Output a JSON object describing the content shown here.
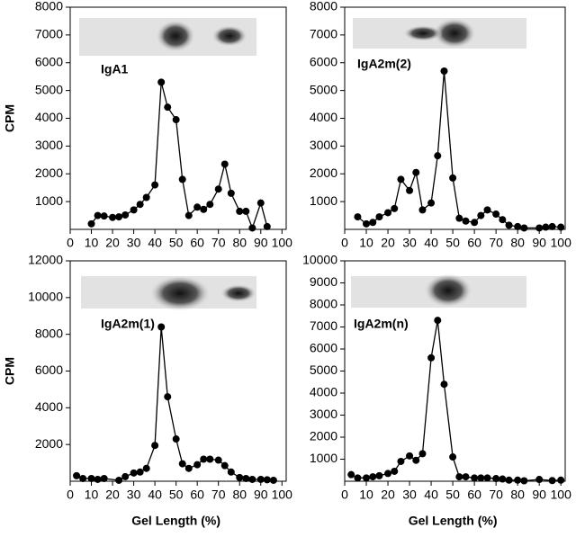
{
  "chart_data": [
    {
      "type": "line",
      "label": "IgA1",
      "y_label": "CPM",
      "color": "#000000",
      "x": [
        10,
        13,
        16,
        20,
        23,
        26,
        30,
        33,
        36,
        40,
        43,
        46,
        50,
        53,
        56,
        60,
        63,
        66,
        70,
        73,
        76,
        80,
        83,
        86,
        90,
        93
      ],
      "values": [
        200,
        500,
        480,
        430,
        450,
        520,
        700,
        900,
        1150,
        1600,
        5300,
        4400,
        3950,
        1800,
        500,
        800,
        720,
        900,
        1450,
        2350,
        1300,
        650,
        650,
        50,
        950,
        100
      ],
      "xlim": [
        0,
        102
      ],
      "xticks": [
        0,
        10,
        20,
        30,
        40,
        50,
        60,
        70,
        80,
        90,
        100
      ],
      "ylim": [
        0,
        8000
      ],
      "yticks": [
        1000,
        2000,
        3000,
        4000,
        5000,
        6000,
        7000,
        8000
      ]
    },
    {
      "type": "line",
      "label": "IgA2m(2)",
      "color": "#000000",
      "x": [
        6,
        10,
        13,
        16,
        20,
        23,
        26,
        30,
        33,
        36,
        40,
        43,
        46,
        50,
        53,
        56,
        60,
        63,
        66,
        70,
        73,
        76,
        80,
        83,
        90,
        93,
        96,
        100
      ],
      "values": [
        450,
        200,
        250,
        450,
        600,
        750,
        1800,
        1400,
        2050,
        700,
        950,
        2650,
        5700,
        1850,
        400,
        300,
        250,
        500,
        700,
        550,
        350,
        150,
        100,
        50,
        50,
        80,
        100,
        80
      ],
      "xlim": [
        0,
        102
      ],
      "xticks": [
        0,
        10,
        20,
        30,
        40,
        50,
        60,
        70,
        80,
        90,
        100
      ],
      "ylim": [
        0,
        8000
      ],
      "yticks": [
        1000,
        2000,
        3000,
        4000,
        5000,
        6000,
        7000,
        8000
      ]
    },
    {
      "type": "line",
      "label": "IgA2m(1)",
      "y_label": "CPM",
      "x_label": "Gel Length (%)",
      "color": "#000000",
      "x": [
        3,
        6,
        10,
        13,
        16,
        23,
        26,
        30,
        33,
        36,
        40,
        43,
        46,
        50,
        53,
        56,
        60,
        63,
        66,
        70,
        73,
        76,
        80,
        83,
        86,
        90,
        93,
        96
      ],
      "values": [
        300,
        150,
        150,
        100,
        150,
        50,
        250,
        450,
        500,
        700,
        1950,
        8400,
        4600,
        2300,
        950,
        700,
        900,
        1200,
        1200,
        1150,
        850,
        500,
        200,
        150,
        100,
        100,
        80,
        50
      ],
      "xlim": [
        0,
        102
      ],
      "xticks": [
        0,
        10,
        20,
        30,
        40,
        50,
        60,
        70,
        80,
        90,
        100
      ],
      "ylim": [
        0,
        12000
      ],
      "yticks": [
        2000,
        4000,
        6000,
        8000,
        10000,
        12000
      ]
    },
    {
      "type": "line",
      "label": "IgA2m(n)",
      "x_label": "Gel Length (%)",
      "color": "#000000",
      "x": [
        3,
        6,
        10,
        13,
        16,
        20,
        23,
        26,
        30,
        33,
        36,
        40,
        43,
        46,
        50,
        53,
        56,
        60,
        63,
        66,
        70,
        73,
        76,
        80,
        83,
        90,
        96,
        100
      ],
      "values": [
        300,
        150,
        150,
        200,
        250,
        350,
        450,
        900,
        1150,
        950,
        1250,
        5600,
        7300,
        4400,
        1100,
        200,
        200,
        150,
        150,
        150,
        120,
        100,
        50,
        50,
        20,
        80,
        30,
        50
      ],
      "xlim": [
        0,
        102
      ],
      "xticks": [
        0,
        10,
        20,
        30,
        40,
        50,
        60,
        70,
        80,
        90,
        100
      ],
      "ylim": [
        0,
        10000
      ],
      "yticks": [
        1000,
        2000,
        3000,
        4000,
        5000,
        6000,
        7000,
        8000,
        9000,
        10000
      ]
    }
  ]
}
